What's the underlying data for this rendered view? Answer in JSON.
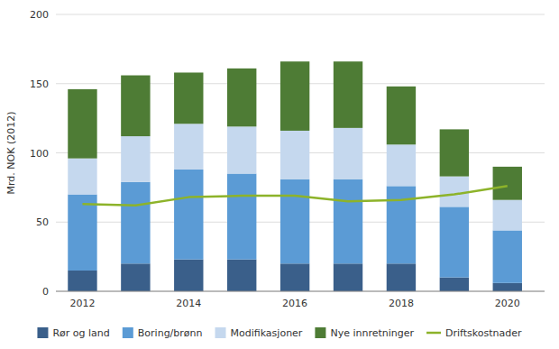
{
  "chart_data": {
    "type": "bar",
    "stacked": true,
    "x": [
      2012,
      2013,
      2014,
      2015,
      2016,
      2017,
      2018,
      2019,
      2020
    ],
    "series": [
      {
        "name": "Rør og land",
        "type": "bar",
        "color": "#3A5F8A",
        "values": [
          15,
          20,
          23,
          23,
          20,
          20,
          20,
          10,
          6
        ]
      },
      {
        "name": "Boring/brønn",
        "type": "bar",
        "color": "#5B9BD5",
        "values": [
          55,
          59,
          65,
          62,
          61,
          61,
          56,
          51,
          38
        ]
      },
      {
        "name": "Modifikasjoner",
        "type": "bar",
        "color": "#C5D8EE",
        "values": [
          26,
          33,
          33,
          34,
          35,
          37,
          30,
          22,
          22
        ]
      },
      {
        "name": "Nye innretninger",
        "type": "bar",
        "color": "#4E7C35",
        "values": [
          50,
          44,
          37,
          42,
          50,
          48,
          42,
          34,
          24
        ]
      },
      {
        "name": "Driftskostnader",
        "type": "line",
        "color": "#8DB32A",
        "values": [
          63,
          62,
          68,
          69,
          69,
          65,
          66,
          70,
          76
        ]
      }
    ],
    "y_label": "Mrd. NOK (2012)",
    "xlim": [
      2011.5,
      2020.7
    ],
    "xticks": [
      2012,
      2014,
      2016,
      2018,
      2020
    ],
    "ylim": [
      0,
      200
    ],
    "yticks": [
      0,
      50,
      100,
      150,
      200
    ],
    "grid": true,
    "legend": "bottom"
  }
}
